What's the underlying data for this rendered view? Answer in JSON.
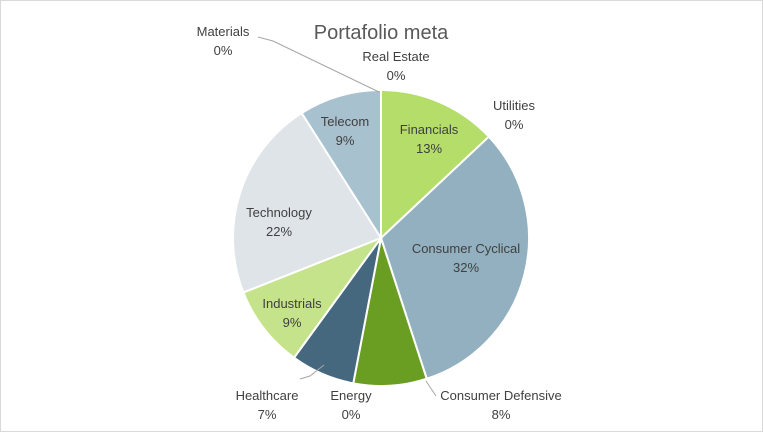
{
  "chart_data": {
    "type": "pie",
    "title": "Portafolio meta",
    "start_angle_deg": 0,
    "direction": "clockwise",
    "slices": [
      {
        "name": "Real Estate",
        "value": 0,
        "value_label": "0%",
        "color": "#2f5597"
      },
      {
        "name": "Utilities",
        "value": 0,
        "value_label": "0%",
        "color": "#ed7d31"
      },
      {
        "name": "Financials",
        "value": 13,
        "value_label": "13%",
        "color": "#b4dd6a"
      },
      {
        "name": "Consumer Cyclical",
        "value": 32,
        "value_label": "32%",
        "color": "#92b0bf"
      },
      {
        "name": "Consumer Defensive",
        "value": 8,
        "value_label": "8%",
        "color": "#6a9e23"
      },
      {
        "name": "Energy",
        "value": 0,
        "value_label": "0%",
        "color": "#7f7f7f"
      },
      {
        "name": "Healthcare",
        "value": 7,
        "value_label": "7%",
        "color": "#46687e"
      },
      {
        "name": "Industrials",
        "value": 9,
        "value_label": "9%",
        "color": "#c5e38a"
      },
      {
        "name": "Technology",
        "value": 22,
        "value_label": "22%",
        "color": "#dfe4e9"
      },
      {
        "name": "Telecom",
        "value": 9,
        "value_label": "9%",
        "color": "#a8c1ce"
      },
      {
        "name": "Materials",
        "value": 0,
        "value_label": "0%",
        "color": "#a5a5a5"
      }
    ],
    "legend": "none"
  }
}
